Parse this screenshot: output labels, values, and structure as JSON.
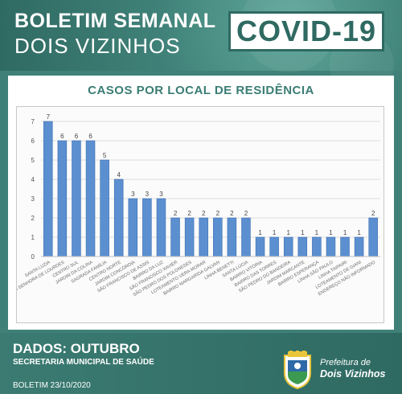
{
  "header": {
    "title_line1": "BOLETIM SEMANAL",
    "title_line2": "DOIS VIZINHOS",
    "badge": "COVID-19"
  },
  "footer": {
    "data_label": "DADOS: OUTUBRO",
    "secretaria": "SECRETARIA MUNICIPAL DE SAÚDE",
    "boletim": "BOLETIM 23/10/2020",
    "prefeitura_line1": "Prefeitura de",
    "prefeitura_line2": "Dois Vizinhos"
  },
  "colors": {
    "bar": "#5b8fd0",
    "bar_edge": "#3c6fb3",
    "teal": "#3f8178",
    "title": "#3a7d74"
  },
  "chart_data": {
    "type": "bar",
    "title": "CASOS POR LOCAL DE RESIDÊNCIA",
    "ylim": [
      0,
      7
    ],
    "yticks": [
      0,
      1,
      2,
      3,
      4,
      5,
      6,
      7
    ],
    "grid": true,
    "categories": [
      "SANTA LUZIA",
      "...SA SENHORA DE LOURDES",
      "CENTRO SUL",
      "JARDIM DA COLINA",
      "SAGRADA FAMÍLIA",
      "CENTRO NORTE",
      "JARDIM CONCÓRDIA",
      "SÃO FRANCISCO DE ASSIS",
      "BAIRRO DA LUZ",
      "SÃO FRANCISCO XAVIER",
      "SÃO PEDRO DOS POLONESES",
      "LOTEAMENTO VERA MORAR",
      "BAIRRO MARGARIDA GALVAN",
      "LINHA BENETTI",
      "SANTA LÚCIA",
      "BAIRRO VITÓRIA",
      "BAIRRO DAS TORRES",
      "SÃO PEDRO DO BANDEIRA",
      "JARDIM MARCANTE",
      "BAIRRO ESPERANÇA",
      "LINHA SÃO PAULO",
      "LINHA TAIPAIRI",
      "LOTEAMENTO DE GIANI",
      "ENDEREÇO NÃO INFORMADO"
    ],
    "values": [
      7,
      6,
      6,
      6,
      5,
      4,
      3,
      3,
      3,
      2,
      2,
      2,
      2,
      2,
      2,
      1,
      1,
      1,
      1,
      1,
      1,
      1,
      1,
      2
    ]
  }
}
